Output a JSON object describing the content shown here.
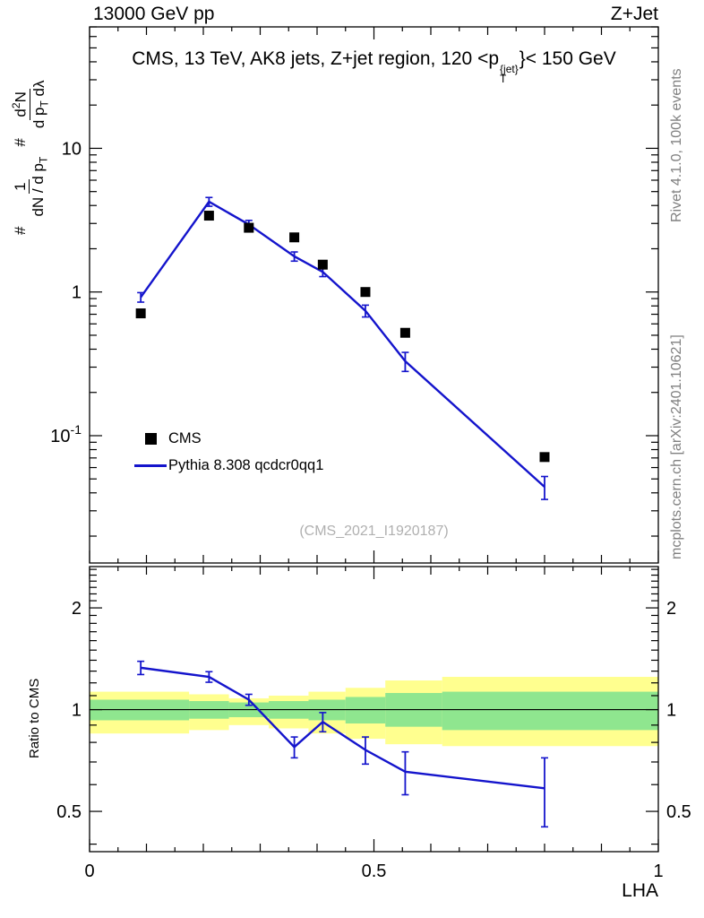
{
  "header": {
    "left": "13000 GeV pp",
    "right": "Z+Jet"
  },
  "panel_title": {
    "prefix": "CMS, 13 TeV, AK8 jets, Z+jet region, 120 <p",
    "sup": "{jet}",
    "sub": "T",
    "suffix": "}< 150 GeV"
  },
  "y_axis_label": {
    "hash1": "#",
    "frac1_num": "1",
    "frac1_den_main": "dN / d p",
    "frac1_den_sub": "T",
    "hash2": "#",
    "frac2_num_a": "d",
    "frac2_num_sup": "2",
    "frac2_num_b": "N",
    "frac2_den_a": "d p",
    "frac2_den_sub": "T",
    "frac2_den_b": " dλ"
  },
  "ratio_ylabel": "Ratio to CMS",
  "xlabel": "LHA",
  "watermark": "(CMS_2021_I1920187)",
  "side_notes": {
    "top": "Rivet 4.1.0, 100k events",
    "bottom": "mcplots.cern.ch [arXiv:2401.10621]"
  },
  "legend": [
    {
      "label": "CMS",
      "marker": "square",
      "color": "#000000"
    },
    {
      "label": "Pythia 8.308 qcdcr0qq1",
      "marker": "line",
      "color": "#1414cc"
    }
  ],
  "chart_data": {
    "type": "line",
    "title": "CMS, 13 TeV, AK8 jets, Z+jet region, 120 < pT{jet} < 150 GeV",
    "xlabel": "LHA",
    "ylabel": "# 1/(dN/dpT) d2N/(dpT dlambda)",
    "ratio_label": "Ratio to CMS",
    "grid": false,
    "legend_position": "inside-left-middle",
    "xlim": [
      0,
      1
    ],
    "main_yscale": "log",
    "main_ylim": [
      0.013,
      70
    ],
    "ratio_yscale": "log",
    "ratio_ylim": [
      0.38,
      2.65
    ],
    "xticks": [
      {
        "v": 0,
        "label": "0"
      },
      {
        "v": 0.5,
        "label": "0.5"
      },
      {
        "v": 1,
        "label": "1"
      }
    ],
    "main_yticks": [
      {
        "v": 10,
        "label": "10"
      },
      {
        "v": 1,
        "label": "1"
      },
      {
        "v": 0.1,
        "label": "10",
        "exp": "-1"
      }
    ],
    "ratio_yticks": [
      {
        "v": 2,
        "label": "2"
      },
      {
        "v": 1,
        "label": "1"
      },
      {
        "v": 0.5,
        "label": "0.5"
      }
    ],
    "x": [
      0.09,
      0.21,
      0.28,
      0.36,
      0.41,
      0.485,
      0.555,
      0.8
    ],
    "series": [
      {
        "name": "CMS",
        "style": "square-marker",
        "color": "#000000",
        "values": [
          0.71,
          3.4,
          2.8,
          2.4,
          1.55,
          1.0,
          0.52,
          0.071
        ]
      },
      {
        "name": "Pythia 8.308 qcdcr0qq1",
        "style": "line",
        "color": "#1414cc",
        "values": [
          0.92,
          4.25,
          2.95,
          1.77,
          1.38,
          0.74,
          0.33,
          0.044
        ],
        "errors": [
          0.07,
          0.3,
          0.2,
          0.13,
          0.1,
          0.07,
          0.05,
          0.008
        ]
      }
    ],
    "ratio": {
      "name": "Pythia 8.308 qcdcr0qq1 / CMS",
      "values": [
        1.33,
        1.25,
        1.07,
        0.775,
        0.92,
        0.76,
        0.655,
        0.585
      ],
      "errors": [
        0.06,
        0.045,
        0.04,
        0.055,
        0.06,
        0.07,
        0.095,
        0.135
      ],
      "ref_line": 1
    },
    "bands": {
      "edges": [
        0,
        0.175,
        0.245,
        0.315,
        0.385,
        0.45,
        0.52,
        0.62,
        1.0
      ],
      "yellow": {
        "color": "#ffff8f",
        "lo": [
          0.85,
          0.87,
          0.9,
          0.88,
          0.85,
          0.82,
          0.79,
          0.78
        ],
        "hi": [
          1.13,
          1.11,
          1.08,
          1.1,
          1.13,
          1.16,
          1.22,
          1.25
        ]
      },
      "green": {
        "color": "#8fe68f",
        "lo": [
          0.93,
          0.94,
          0.95,
          0.94,
          0.93,
          0.91,
          0.89,
          0.87
        ],
        "hi": [
          1.07,
          1.06,
          1.05,
          1.06,
          1.07,
          1.09,
          1.12,
          1.13
        ]
      }
    }
  }
}
